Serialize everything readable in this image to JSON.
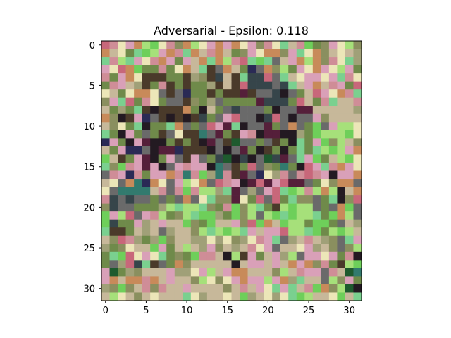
{
  "chart_data": {
    "type": "heatmap",
    "title": "Adversarial - Epsilon: 0.118",
    "xlabel": "",
    "ylabel": "",
    "grid": false,
    "rows": 32,
    "cols": 32,
    "xlim": [
      -0.5,
      31.5
    ],
    "ylim": [
      31.5,
      -0.5
    ],
    "xticks": [
      0,
      5,
      10,
      15,
      20,
      25,
      30
    ],
    "yticks": [
      0,
      5,
      10,
      15,
      20,
      25,
      30
    ],
    "xtick_labels": [
      "0",
      "5",
      "10",
      "15",
      "20",
      "25",
      "30"
    ],
    "ytick_labels": [
      "0",
      "5",
      "10",
      "15",
      "20",
      "25",
      "30"
    ],
    "palette": {
      "r": "#c8677a",
      "M": "#cf8d97",
      "P": "#d9a0b8",
      "l": "#ece6b8",
      "S": "#c7b89a",
      "o": "#8a8f5f",
      "O": "#a0a078",
      "g": "#6f8a4a",
      "L": "#6ecf5a",
      "G": "#a6e07a",
      "c": "#7ad08f",
      "t": "#327a6e",
      "a": "#c88a5a",
      "d": "#4a3a2a",
      "b": "#231a22",
      "p": "#551f3a",
      "n": "#2a2a55",
      "k": "#36454a",
      "s": "#6a6a6a",
      "f": "#1e5a2e"
    },
    "pixels": [
      "rMlPaGLlMoaGlPaPalPoMlcSMLgoPlGo",
      "aSlgcLGPaMcaSMaSgoPlaaoPclaoSlSO",
      "cMGcPlMaPgPSacaGMrcLcsSPaGaoMlcO",
      "PlraLggMglaScdsaSgnsaoGgPlaPlGPg",
      "MgPaldddggdOodkSdckkrscSlPPlPcMl",
      "gMPSOdgMdgdggOdSdrkkkskcSPaSMPgr",
      "lSglaalsdsnggdgddpdsskbsgSrPlaMc",
      "oPcrgMlgssdogOsggggpkkkgrSgMcSSM",
      "SgOgcdbdddagbSgsksssgbssppSSSSSO",
      "aobdPnsdbdbdkgsPrssbkrsbssPoSSSS",
      "SolgcbggcasgsrPpcbsspgsasgLsPGGl",
      "cgbPgsgdslddtspgdPMbppbbOgLGGGLl",
      "nPgbPpbbgdgdbpsdfssgsdgbcgPLoGSo",
      "SgPnnsbppndddbsbspgbdgbgcgcGLGPa",
      "LSdgPpbgPsdPsgkfbkbsfkpscPLgSGLl",
      "coLMPpPbsPMPPbtsdgrsogtgbrPcMaPl",
      "sMPnMgPPaMtMLOtMdpsnlOMsMrMPbPPa",
      "SlsatnalsPGlasrMPbprpPrppsgloaas",
      "lsttttSMsMLMGGOcpsOsPrcLGMGaGbSa",
      "Mkskssgsgsaslcooplgrsrgcoosgcbor",
      "okssgggOGcGGcogMLoGcgdGLGGsgsaLs",
      "LPGrsPMGgoGcLLOgLoGsGLcLGGcgLaGs",
      "LkggPOSPSSLogLSSPorLaSLGGgLLgsSO",
      "cddgSOSsOSSoGcGLGcPSPPrGGcLgGLGS",
      "SorMOgOLoSSOOlOloOlMPcsOSMSOoscP",
      "OgolSSLPgSGSOPoSOSMlPsSSlPOSosoG",
      "gcLrlPlcgogLMMSbGdPgSPOGsPPlPgMb",
      "gsOrkcdsgaoSSSSSbSPPSPSaPaoMgdGL",
      "PfgOoSSSPOOlPGSPaaSSSoGSMPPsMSft",
      "PaSaaMaSPSSoGlolPaPPGPaOcSSsGoPg",
      "OoLoSMoMSSPSSSSoSMSPlcPcSMLaoGfb",
      "SGlSoSlSSSclOSSlSLOSlOlcLGSSlLSc"
    ]
  }
}
